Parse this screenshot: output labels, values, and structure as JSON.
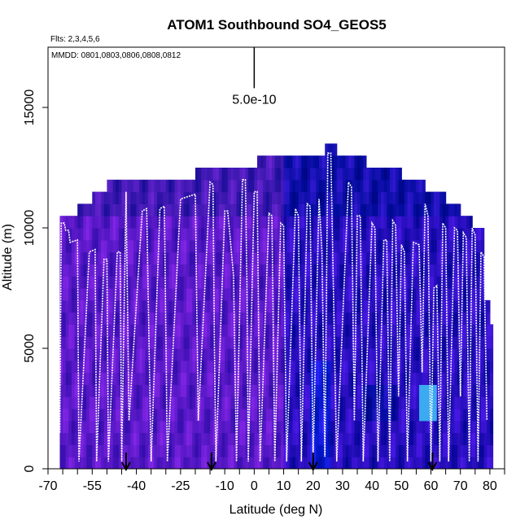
{
  "chart_data": {
    "type": "heatmap",
    "title": "ATOM1 Southbound SO4_GEOS5",
    "subtitle": "Flts: 2,3,4,5,6",
    "annotation": "MMDD: 0801,0803,0806,0808,0812",
    "xlabel": "Latitude (deg N)",
    "ylabel": "Altitude (m)",
    "xlim": [
      -70,
      85
    ],
    "ylim": [
      0,
      17500
    ],
    "xticks": [
      -70,
      -55,
      -40,
      -25,
      -10,
      0,
      10,
      20,
      30,
      40,
      50,
      60,
      70,
      80
    ],
    "xtick_labels": [
      "-70",
      "-55",
      "-40",
      "-25",
      "-10",
      "0",
      "10",
      "20",
      "30",
      "40",
      "50",
      "60",
      "70",
      "80"
    ],
    "xticks_unlabeled": [
      -65,
      -60,
      -50,
      -45,
      -35,
      -30,
      -20,
      -15,
      -5,
      5,
      15,
      25,
      35,
      45,
      55,
      65,
      75,
      85
    ],
    "yticks": [
      0,
      5000,
      10000,
      15000
    ],
    "ytick_labels": [
      "0",
      "5000",
      "10000",
      "15000"
    ],
    "scale_bar": {
      "label": "5.0e-10",
      "x": 0,
      "y_bottom": 15800,
      "y_top": 17500
    },
    "model_ceiling": [
      {
        "x0": -66,
        "x1": -60,
        "top": 10500
      },
      {
        "x0": -60,
        "x1": -55,
        "top": 11000
      },
      {
        "x0": -55,
        "x1": -50,
        "top": 11500
      },
      {
        "x0": -50,
        "x1": -20,
        "top": 12000
      },
      {
        "x0": -20,
        "x1": 1,
        "top": 12500
      },
      {
        "x0": 1,
        "x1": 24,
        "top": 13000
      },
      {
        "x0": 24,
        "x1": 28,
        "top": 13500
      },
      {
        "x0": 28,
        "x1": 38,
        "top": 13000
      },
      {
        "x0": 38,
        "x1": 50,
        "top": 12500
      },
      {
        "x0": 50,
        "x1": 58,
        "top": 12000
      },
      {
        "x0": 58,
        "x1": 65,
        "top": 11500
      },
      {
        "x0": 65,
        "x1": 70,
        "top": 11000
      },
      {
        "x0": 70,
        "x1": 74,
        "top": 10500
      },
      {
        "x0": 74,
        "x1": 78,
        "top": 10000
      },
      {
        "x0": 78,
        "x1": 80,
        "top": 7000
      },
      {
        "x0": 80,
        "x1": 81,
        "top": 6000
      }
    ],
    "flight_track": [
      [
        -66,
        1500
      ],
      [
        -65.5,
        10200
      ],
      [
        -64.5,
        10200
      ],
      [
        -64,
        9900
      ],
      [
        -63,
        9900
      ],
      [
        -62.5,
        9400
      ],
      [
        -60,
        9500
      ],
      [
        -59.5,
        300
      ],
      [
        -56,
        9000
      ],
      [
        -54,
        9100
      ],
      [
        -53.5,
        300
      ],
      [
        -51,
        8700
      ],
      [
        -50,
        8700
      ],
      [
        -49.5,
        300
      ],
      [
        -46.5,
        9000
      ],
      [
        -45.5,
        9000
      ],
      [
        -45,
        300
      ],
      [
        -43.5,
        11500
      ],
      [
        -42.5,
        2000
      ],
      [
        -38,
        10700
      ],
      [
        -36.5,
        10800
      ],
      [
        -35,
        300
      ],
      [
        -32,
        10800
      ],
      [
        -30.5,
        10900
      ],
      [
        -29.5,
        300
      ],
      [
        -25,
        11200
      ],
      [
        -20,
        11400
      ],
      [
        -19,
        2000
      ],
      [
        -15,
        11900
      ],
      [
        -14,
        11800
      ],
      [
        -13.5,
        5000
      ],
      [
        -13,
        300
      ],
      [
        -10,
        10700
      ],
      [
        -9,
        10700
      ],
      [
        -7,
        8000
      ],
      [
        -6,
        300
      ],
      [
        -4,
        12000
      ],
      [
        -3,
        12000
      ],
      [
        -2.5,
        8000
      ],
      [
        -2,
        300
      ],
      [
        0,
        11500
      ],
      [
        1,
        11500
      ],
      [
        2,
        300
      ],
      [
        5,
        10600
      ],
      [
        6,
        10500
      ],
      [
        7,
        300
      ],
      [
        9,
        10200
      ],
      [
        10,
        10100
      ],
      [
        11,
        300
      ],
      [
        14,
        10800
      ],
      [
        15,
        10500
      ],
      [
        16,
        300
      ],
      [
        18,
        11000
      ],
      [
        19,
        10900
      ],
      [
        20,
        300
      ],
      [
        22,
        11200
      ],
      [
        23,
        9000
      ],
      [
        24,
        500
      ],
      [
        25,
        13100
      ],
      [
        26,
        13100
      ],
      [
        28,
        300
      ],
      [
        32,
        11900
      ],
      [
        33,
        11700
      ],
      [
        34,
        2000
      ],
      [
        35,
        10500
      ],
      [
        36,
        10500
      ],
      [
        37,
        300
      ],
      [
        40,
        10200
      ],
      [
        41,
        10000
      ],
      [
        42,
        300
      ],
      [
        44,
        9500
      ],
      [
        45,
        9500
      ],
      [
        46,
        300
      ],
      [
        47,
        10300
      ],
      [
        48,
        10100
      ],
      [
        49,
        3000
      ],
      [
        50,
        9300
      ],
      [
        51,
        9000
      ],
      [
        52,
        300
      ],
      [
        54,
        9400
      ],
      [
        56,
        9300
      ],
      [
        57,
        4000
      ],
      [
        58,
        11000
      ],
      [
        59,
        10500
      ],
      [
        60,
        300
      ],
      [
        61,
        7500
      ],
      [
        62,
        7600
      ],
      [
        63,
        300
      ],
      [
        64,
        10200
      ],
      [
        65,
        10000
      ],
      [
        66,
        300
      ],
      [
        68,
        10000
      ],
      [
        69,
        9900
      ],
      [
        70,
        3000
      ],
      [
        71,
        9800
      ],
      [
        72,
        9600
      ],
      [
        73,
        300
      ],
      [
        74,
        10000
      ],
      [
        75,
        9700
      ],
      [
        76,
        300
      ],
      [
        77,
        9000
      ],
      [
        78,
        8800
      ],
      [
        79,
        2000
      ]
    ],
    "arrows": [
      -43.5,
      -14.5,
      20,
      60.5
    ]
  }
}
